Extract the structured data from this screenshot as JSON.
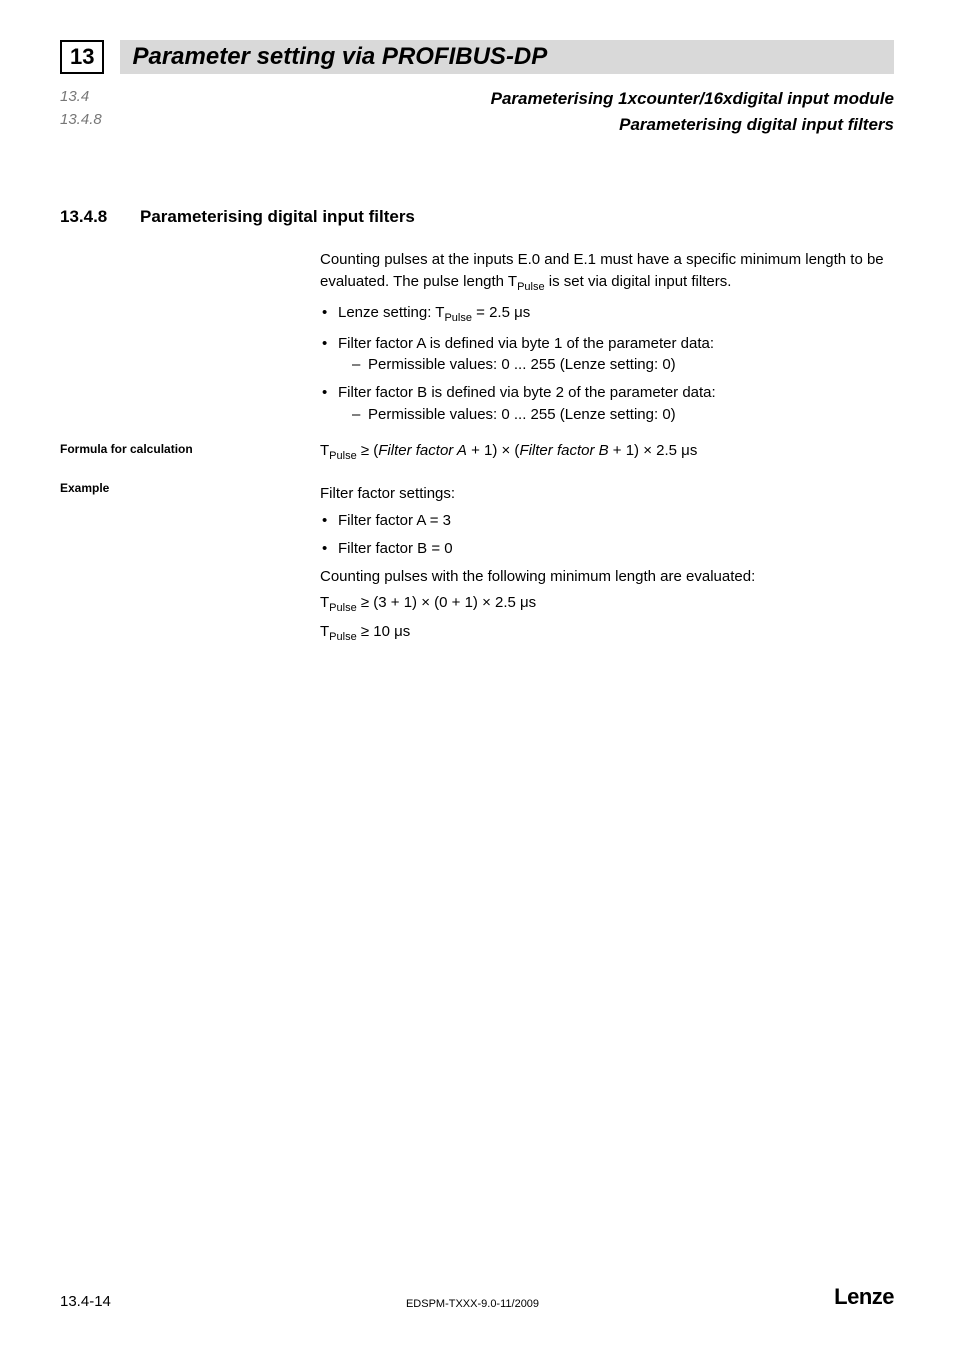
{
  "header": {
    "chapter_number": "13",
    "chapter_title": "Parameter setting via PROFIBUS-DP"
  },
  "breadcrumb": {
    "left_1": "13.4",
    "left_2": "13.4.8",
    "right_1": "Parameterising 1xcounter/16xdigital input module",
    "right_2": "Parameterising digital input filters"
  },
  "section": {
    "number": "13.4.8",
    "title": "Parameterising digital input filters"
  },
  "intro": {
    "line1_a": "Counting pulses at the inputs E.0 and E.1 must have a specific minimum length to be evaluated. The pulse length T",
    "line1_sub": "Pulse",
    "line1_b": " is set via digital input filters."
  },
  "bullets": {
    "b1_a": "Lenze setting: T",
    "b1_sub": "Pulse",
    "b1_b": " = 2.5 μs",
    "b2": "Filter factor A is defined via byte 1 of the parameter data:",
    "b2_sub": "Permissible values: 0 ... 255 (Lenze setting: 0)",
    "b3": "Filter factor B is defined via byte 2 of the parameter data:",
    "b3_sub": "Permissible values: 0 ... 255 (Lenze setting: 0)"
  },
  "formula_label": "Formula for calculation",
  "formula": {
    "a": "T",
    "sub": "Pulse",
    "b": " ≥ (",
    "c": "Filter factor A",
    "d": " + 1) × (",
    "e": "Filter factor B",
    "f": " + 1) × 2.5 μs"
  },
  "example_label": "Example",
  "example": {
    "intro": "Filter factor settings:",
    "bA": "Filter factor A = 3",
    "bB": "Filter factor B = 0",
    "line2": "Counting pulses with the following minimum length are evaluated:",
    "eq1_a": "T",
    "eq1_sub": "Pulse",
    "eq1_b": " ≥ (3 + 1) × (0 + 1) × 2.5 μs",
    "eq2_a": "T",
    "eq2_sub": "Pulse",
    "eq2_b": " ≥ 10 μs"
  },
  "footer": {
    "pagenum": "13.4-14",
    "docid": "EDSPM-TXXX-9.0-11/2009",
    "brand": "Lenze"
  },
  "colors": {
    "header_bar_bg": "#d9d9d9",
    "breadcrumb_left": "#777777",
    "text": "#000000",
    "background": "#ffffff"
  },
  "typography": {
    "chapter_title_size_pt": 24,
    "section_heading_size_pt": 17,
    "body_size_pt": 15,
    "side_label_size_pt": 12,
    "footer_docid_size_pt": 11,
    "brand_size_pt": 22
  }
}
